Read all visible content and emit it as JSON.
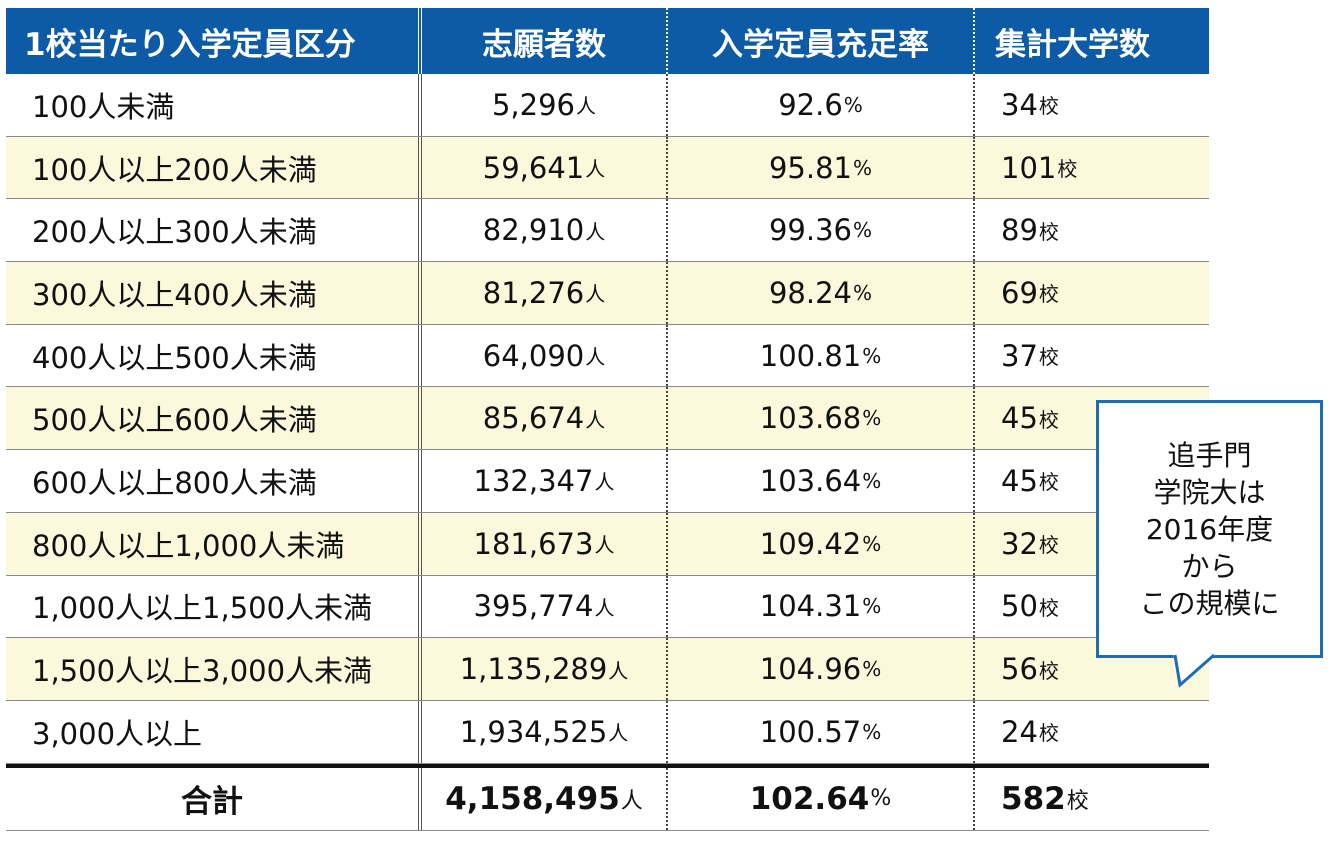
{
  "chart_data": {
    "type": "table",
    "columns": [
      "1校当たり入学定員区分",
      "志願者数",
      "入学定員充足率",
      "集計大学数"
    ],
    "rows": [
      {
        "category": "100人未満",
        "applicants": "5,296",
        "fill_rate": "92.6",
        "universities": "34"
      },
      {
        "category": "100人以上200人未満",
        "applicants": "59,641",
        "fill_rate": "95.81",
        "universities": "101"
      },
      {
        "category": "200人以上300人未満",
        "applicants": "82,910",
        "fill_rate": "99.36",
        "universities": "89"
      },
      {
        "category": "300人以上400人未満",
        "applicants": "81,276",
        "fill_rate": "98.24",
        "universities": "69"
      },
      {
        "category": "400人以上500人未満",
        "applicants": "64,090",
        "fill_rate": "100.81",
        "universities": "37"
      },
      {
        "category": "500人以上600人未満",
        "applicants": "85,674",
        "fill_rate": "103.68",
        "universities": "45"
      },
      {
        "category": "600人以上800人未満",
        "applicants": "132,347",
        "fill_rate": "103.64",
        "universities": "45"
      },
      {
        "category": "800人以上1,000人未満",
        "applicants": "181,673",
        "fill_rate": "109.42",
        "universities": "32"
      },
      {
        "category": "1,000人以上1,500人未満",
        "applicants": "395,774",
        "fill_rate": "104.31",
        "universities": "50"
      },
      {
        "category": "1,500人以上3,000人未満",
        "applicants": "1,135,289",
        "fill_rate": "104.96",
        "universities": "56"
      },
      {
        "category": "3,000人以上",
        "applicants": "1,934,525",
        "fill_rate": "100.57",
        "universities": "24"
      }
    ],
    "total": {
      "category": "合計",
      "applicants": "4,158,495",
      "fill_rate": "102.64",
      "universities": "582"
    },
    "units": {
      "applicants": "人",
      "fill_rate": "%",
      "universities": "校"
    },
    "shaded_rows": [
      1,
      3,
      5,
      7,
      9
    ],
    "colors": {
      "header_bg": "#0d5aa7",
      "shade": "#fcf8dc",
      "callout_border": "#1d6db6"
    }
  },
  "callout": {
    "lines": [
      "追手門",
      "学院大は",
      "2016年度",
      "から",
      "この規模に"
    ]
  }
}
